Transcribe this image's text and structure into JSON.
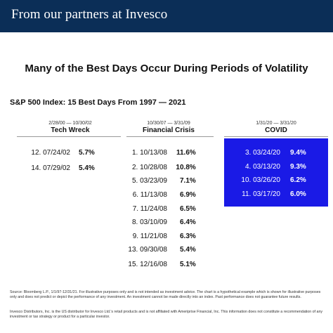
{
  "banner": {
    "text": "From our partners at Invesco"
  },
  "title": "Many of the Best Days Occur During Periods of Volatility",
  "subtitle": "S&P 500 Index: 15 Best Days From 1997 — 2021",
  "columns": [
    {
      "dates": "2/28/00 — 10/30/02",
      "name": "Tech Wreck",
      "rows": [
        {
          "label": "12. 07/24/02",
          "pct": "5.7%"
        },
        {
          "label": "14. 07/29/02",
          "pct": "5.4%"
        }
      ]
    },
    {
      "dates": "10/30/07 — 3/31/09",
      "name": "Financial Crisis",
      "rows": [
        {
          "label": "1.  10/13/08",
          "pct": "11.6%"
        },
        {
          "label": "2.  10/28/08",
          "pct": "10.8%"
        },
        {
          "label": "5.  03/23/09",
          "pct": "7.1%"
        },
        {
          "label": "6.  11/13/08",
          "pct": "6.9%"
        },
        {
          "label": "7.  11/24/08",
          "pct": "6.5%"
        },
        {
          "label": "8.  03/10/09",
          "pct": "6.4%"
        },
        {
          "label": "9.  11/21/08",
          "pct": "6.3%"
        },
        {
          "label": "13.  09/30/08",
          "pct": "5.4%"
        },
        {
          "label": "15.  12/16/08",
          "pct": "5.1%"
        }
      ]
    },
    {
      "dates": "1/31/20 — 3/31/20",
      "name": "COVID",
      "rows": [
        {
          "label": "3.  03/24/20",
          "pct": "9.4%"
        },
        {
          "label": "4.  03/13/20",
          "pct": "9.3%"
        },
        {
          "label": "10.  03/26/20",
          "pct": "6.2%"
        },
        {
          "label": "11.  03/17/20",
          "pct": "6.0%"
        }
      ]
    }
  ],
  "footer": {
    "source": "Source: Bloomberg L.P., 1/1/97-12/31/21. For illustrative purposes only and is not intended as investment advice. The chart is a hypothetical example which is shown for illustrative purposes only and does not predict or depict the performance of any investment. An investment cannot be made directly into an index. Past performance does not guarantee future results.",
    "disclosure": "Invesco Distributors, Inc. is the US distributor for Invesco Ltd.'s retail products and is not affiliated with Ameriprise Financial, Inc. This information does not constitute a recommendation of any investment or tax strategy or product for a particular investor."
  },
  "colors": {
    "banner": "#0b2e57",
    "covid_highlight": "#1a1ae6"
  }
}
